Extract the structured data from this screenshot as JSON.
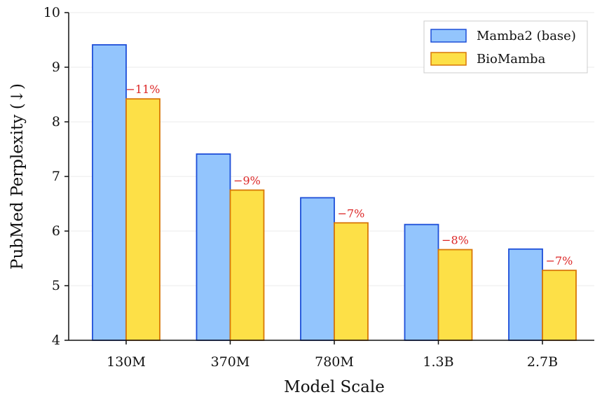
{
  "chart_data": {
    "type": "bar",
    "xlabel": "Model Scale",
    "ylabel": "PubMed Perplexity (↓)",
    "ylim": [
      4,
      10
    ],
    "yticks": [
      "4",
      "5",
      "6",
      "7",
      "8",
      "9",
      "10"
    ],
    "grid": "horizontal",
    "legend_position": "top-right",
    "categories": [
      "130M",
      "370M",
      "780M",
      "1.3B",
      "2.7B"
    ],
    "series": [
      {
        "name": "Mamba2 (base)",
        "values": [
          9.41,
          7.41,
          6.61,
          6.12,
          5.67
        ],
        "fill": "#93c5fd",
        "stroke": "#1d4ed8"
      },
      {
        "name": "BioMamba",
        "values": [
          8.42,
          6.75,
          6.15,
          5.66,
          5.28
        ],
        "fill": "#fde047",
        "stroke": "#d97706"
      }
    ],
    "annotations": [
      "−11%",
      "−9%",
      "−7%",
      "−8%",
      "−7%"
    ],
    "annotation_color": "#dc2626"
  }
}
